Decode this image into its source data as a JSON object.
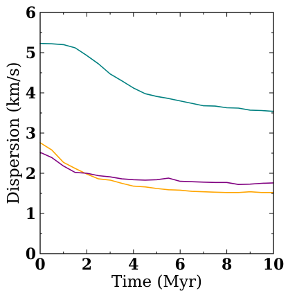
{
  "chart_data": {
    "type": "line",
    "title": "",
    "xlabel": "Time (Myr)",
    "ylabel": "Dispersion (km/s)",
    "xlim": [
      0,
      10
    ],
    "ylim": [
      0,
      6
    ],
    "xticks": [
      0,
      2,
      4,
      6,
      8,
      10
    ],
    "yticks": [
      0,
      1,
      2,
      3,
      4,
      5,
      6
    ],
    "xtick_labels": [
      "0",
      "2",
      "4",
      "6",
      "8",
      "10"
    ],
    "ytick_labels": [
      "0",
      "1",
      "2",
      "3",
      "4",
      "5",
      "6"
    ],
    "grid": false,
    "legend": "none",
    "series": [
      {
        "color": "#008080",
        "x": [
          0,
          0.5,
          1.0,
          1.5,
          2.0,
          2.5,
          3.0,
          3.5,
          4.0,
          4.5,
          5.0,
          5.5,
          6.0,
          6.5,
          7.0,
          7.5,
          8.0,
          8.5,
          9.0,
          9.5,
          10.0
        ],
        "y": [
          5.23,
          5.22,
          5.2,
          5.12,
          4.93,
          4.72,
          4.47,
          4.3,
          4.12,
          3.98,
          3.91,
          3.86,
          3.8,
          3.74,
          3.68,
          3.67,
          3.63,
          3.62,
          3.57,
          3.56,
          3.54
        ]
      },
      {
        "color": "#ffa500",
        "x": [
          0,
          0.5,
          1.0,
          1.5,
          2.0,
          2.5,
          3.0,
          3.5,
          4.0,
          4.5,
          5.0,
          5.5,
          6.0,
          6.5,
          7.0,
          7.5,
          8.0,
          8.5,
          9.0,
          9.5,
          10.0
        ],
        "y": [
          2.76,
          2.58,
          2.27,
          2.12,
          1.98,
          1.86,
          1.83,
          1.75,
          1.68,
          1.66,
          1.62,
          1.59,
          1.58,
          1.55,
          1.54,
          1.53,
          1.52,
          1.52,
          1.54,
          1.52,
          1.52
        ]
      },
      {
        "color": "#800080",
        "x": [
          0,
          0.5,
          1.0,
          1.5,
          2.0,
          2.5,
          3.0,
          3.5,
          4.0,
          4.5,
          5.0,
          5.5,
          6.0,
          6.5,
          7.0,
          7.5,
          8.0,
          8.5,
          9.0,
          9.5,
          10.0
        ],
        "y": [
          2.52,
          2.39,
          2.18,
          2.02,
          2.0,
          1.94,
          1.91,
          1.86,
          1.84,
          1.83,
          1.84,
          1.88,
          1.8,
          1.79,
          1.78,
          1.77,
          1.77,
          1.72,
          1.73,
          1.75,
          1.76
        ]
      }
    ]
  }
}
